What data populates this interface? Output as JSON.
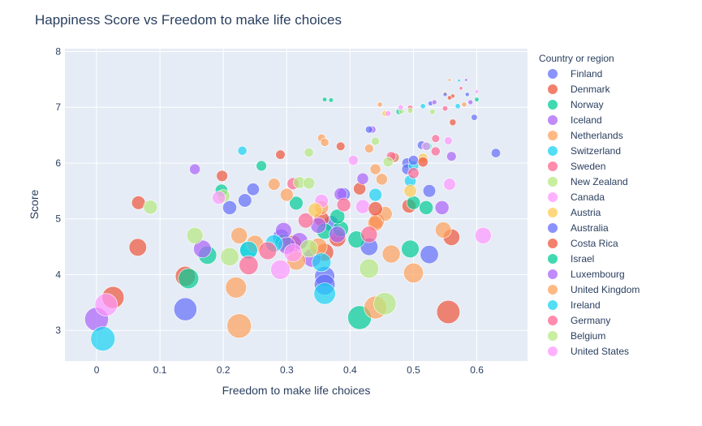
{
  "chart_data": {
    "type": "scatter",
    "title": "Happiness Score vs Freedom to make life choices",
    "xlabel": "Freedom to make life choices",
    "ylabel": "Score",
    "xlim": [
      -0.05,
      0.68
    ],
    "ylim": [
      2.45,
      8.05
    ],
    "x_ticks": [
      0,
      0.1,
      0.2,
      0.3,
      0.4,
      0.5,
      0.6
    ],
    "x_tick_labels": [
      "0",
      "0.1",
      "0.2",
      "0.3",
      "0.4",
      "0.5",
      "0.6"
    ],
    "y_ticks": [
      3,
      4,
      5,
      6,
      7,
      8
    ],
    "y_tick_labels": [
      "3",
      "4",
      "5",
      "6",
      "7",
      "8"
    ],
    "grid": true,
    "legend_title": "Country or region",
    "legend_position": "right",
    "size_encoding": "bubble size larger for lower score",
    "series": [
      {
        "name": "Finland",
        "color": "#636efa",
        "points": [
          [
            0.596,
            6.82
          ],
          [
            0.527,
            7.07
          ],
          [
            0.513,
            6.32
          ],
          [
            0.63,
            6.18
          ],
          [
            0.49,
            6.0
          ],
          [
            0.47,
            6.1
          ],
          [
            0.247,
            5.53
          ],
          [
            0.234,
            5.33
          ],
          [
            0.21,
            5.2
          ],
          [
            0.49,
            5.89
          ],
          [
            0.39,
            5.44
          ],
          [
            0.291,
            4.67
          ],
          [
            0.43,
            4.5
          ],
          [
            0.525,
            4.36
          ],
          [
            0.36,
            3.97
          ],
          [
            0.14,
            3.38
          ],
          [
            0.36,
            3.82
          ],
          [
            0.37,
            4.92
          ]
        ]
      },
      {
        "name": "Denmark",
        "color": "#ef553b",
        "points": [
          [
            0.562,
            7.2
          ],
          [
            0.562,
            6.73
          ],
          [
            0.29,
            6.15
          ],
          [
            0.385,
            6.3
          ],
          [
            0.198,
            5.77
          ],
          [
            0.355,
            5.0
          ],
          [
            0.442,
            4.96
          ],
          [
            0.493,
            5.23
          ],
          [
            0.066,
            5.29
          ],
          [
            0.415,
            5.54
          ],
          [
            0.065,
            4.49
          ],
          [
            0.31,
            4.55
          ],
          [
            0.555,
            3.33
          ],
          [
            0.56,
            4.67
          ],
          [
            0.14,
            3.97
          ],
          [
            0.36,
            4.4
          ],
          [
            0.026,
            3.59
          ],
          [
            0.38,
            4.65
          ]
        ]
      },
      {
        "name": "Norway",
        "color": "#00cc96",
        "points": [
          [
            0.37,
            7.13
          ],
          [
            0.477,
            6.92
          ],
          [
            0.522,
            6.3
          ],
          [
            0.26,
            5.95
          ],
          [
            0.197,
            5.51
          ],
          [
            0.315,
            5.28
          ],
          [
            0.5,
            5.29
          ],
          [
            0.52,
            5.2
          ],
          [
            0.24,
            4.44
          ],
          [
            0.295,
            4.58
          ],
          [
            0.385,
            4.82
          ],
          [
            0.36,
            4.78
          ],
          [
            0.41,
            4.63
          ],
          [
            0.175,
            4.35
          ],
          [
            0.495,
            4.46
          ],
          [
            0.145,
            3.93
          ],
          [
            0.415,
            3.23
          ],
          [
            0.38,
            5.04
          ]
        ]
      },
      {
        "name": "Iceland",
        "color": "#ab63fa",
        "points": [
          [
            0.583,
            7.49
          ],
          [
            0.533,
            7.09
          ],
          [
            0.435,
            6.6
          ],
          [
            0.56,
            6.12
          ],
          [
            0.155,
            5.89
          ],
          [
            0.42,
            5.72
          ],
          [
            0.385,
            5.44
          ],
          [
            0.545,
            5.2
          ],
          [
            0.295,
            4.79
          ],
          [
            0.35,
            4.88
          ],
          [
            0.167,
            4.46
          ],
          [
            0.32,
            4.6
          ],
          [
            0.34,
            4.3
          ],
          [
            0.0,
            3.2
          ],
          [
            0.38,
            4.72
          ],
          [
            0.3,
            4.52
          ]
        ]
      },
      {
        "name": "Netherlands",
        "color": "#ffa15a",
        "points": [
          [
            0.557,
            7.49
          ],
          [
            0.447,
            7.05
          ],
          [
            0.355,
            6.45
          ],
          [
            0.36,
            6.37
          ],
          [
            0.43,
            6.26
          ],
          [
            0.47,
            6.1
          ],
          [
            0.44,
            5.89
          ],
          [
            0.45,
            5.71
          ],
          [
            0.28,
            5.62
          ],
          [
            0.3,
            5.43
          ],
          [
            0.355,
            5.2
          ],
          [
            0.455,
            5.09
          ],
          [
            0.44,
            4.92
          ],
          [
            0.547,
            4.8
          ],
          [
            0.225,
            4.7
          ],
          [
            0.25,
            4.55
          ],
          [
            0.465,
            4.37
          ],
          [
            0.35,
            4.5
          ],
          [
            0.315,
            4.25
          ],
          [
            0.5,
            4.03
          ],
          [
            0.22,
            3.77
          ],
          [
            0.225,
            3.08
          ],
          [
            0.44,
            3.41
          ]
        ]
      },
      {
        "name": "Switzerland",
        "color": "#19d3f3",
        "points": [
          [
            0.572,
            7.48
          ],
          [
            0.515,
            7.02
          ],
          [
            0.23,
            6.22
          ],
          [
            0.44,
            5.43
          ],
          [
            0.495,
            5.68
          ],
          [
            0.24,
            4.44
          ],
          [
            0.28,
            4.56
          ],
          [
            0.355,
            4.22
          ],
          [
            0.36,
            3.66
          ],
          [
            0.01,
            2.85
          ],
          [
            0.5,
            5.95
          ]
        ]
      },
      {
        "name": "Sweden",
        "color": "#ff6692",
        "points": [
          [
            0.575,
            7.34
          ],
          [
            0.495,
            6.99
          ],
          [
            0.465,
            6.12
          ],
          [
            0.535,
            6.44
          ],
          [
            0.535,
            6.21
          ],
          [
            0.39,
            5.25
          ],
          [
            0.31,
            5.63
          ],
          [
            0.33,
            4.97
          ],
          [
            0.27,
            4.43
          ],
          [
            0.24,
            4.17
          ],
          [
            0.43,
            4.72
          ],
          [
            0.5,
            5.82
          ]
        ]
      },
      {
        "name": "New Zealand",
        "color": "#b6e880",
        "points": [
          [
            0.495,
            6.94
          ],
          [
            0.481,
            6.93
          ],
          [
            0.44,
            6.39
          ],
          [
            0.335,
            6.19
          ],
          [
            0.32,
            5.65
          ],
          [
            0.335,
            5.64
          ],
          [
            0.085,
            5.21
          ],
          [
            0.2,
            5.41
          ],
          [
            0.155,
            4.7
          ],
          [
            0.21,
            4.32
          ],
          [
            0.335,
            4.47
          ],
          [
            0.43,
            4.11
          ],
          [
            0.455,
            3.48
          ],
          [
            0.46,
            6.02
          ]
        ]
      },
      {
        "name": "Canada",
        "color": "#ff97ff",
        "points": [
          [
            0.6,
            7.28
          ],
          [
            0.48,
            7.0
          ],
          [
            0.555,
            6.4
          ],
          [
            0.52,
            6.3
          ],
          [
            0.405,
            6.05
          ],
          [
            0.193,
            5.38
          ],
          [
            0.355,
            5.32
          ],
          [
            0.42,
            5.22
          ],
          [
            0.557,
            5.62
          ],
          [
            0.61,
            4.7
          ],
          [
            0.31,
            4.39
          ],
          [
            0.29,
            4.09
          ],
          [
            0.015,
            3.46
          ]
        ]
      },
      {
        "name": "Austria",
        "color": "#fecb52",
        "points": [
          [
            0.55,
            7.25
          ],
          [
            0.455,
            6.89
          ],
          [
            0.515,
            6.09
          ],
          [
            0.495,
            5.5
          ],
          [
            0.345,
            5.16
          ]
        ]
      },
      {
        "name": "Australia",
        "color": "#636efa",
        "points": [
          [
            0.585,
            7.23
          ],
          [
            0.55,
            7.23
          ],
          [
            0.43,
            6.6
          ],
          [
            0.5,
            6.05
          ],
          [
            0.525,
            5.5
          ]
        ]
      },
      {
        "name": "Costa Rica",
        "color": "#ef553b",
        "points": [
          [
            0.557,
            7.17
          ],
          [
            0.515,
            6.02
          ],
          [
            0.44,
            5.18
          ]
        ]
      },
      {
        "name": "Israel",
        "color": "#00cc96",
        "points": [
          [
            0.6,
            7.14
          ],
          [
            0.36,
            7.14
          ]
        ]
      },
      {
        "name": "Luxembourg",
        "color": "#ab63fa",
        "points": [
          [
            0.59,
            7.09
          ]
        ]
      },
      {
        "name": "United Kingdom",
        "color": "#ffa15a",
        "points": [
          [
            0.58,
            7.05
          ]
        ]
      },
      {
        "name": "Ireland",
        "color": "#19d3f3",
        "points": [
          [
            0.57,
            7.02
          ]
        ]
      },
      {
        "name": "Germany",
        "color": "#ff6692",
        "points": [
          [
            0.55,
            6.98
          ]
        ]
      },
      {
        "name": "Belgium",
        "color": "#b6e880",
        "points": [
          [
            0.53,
            6.92
          ]
        ]
      },
      {
        "name": "United States",
        "color": "#ff97ff",
        "points": [
          [
            0.46,
            6.89
          ]
        ]
      }
    ]
  }
}
